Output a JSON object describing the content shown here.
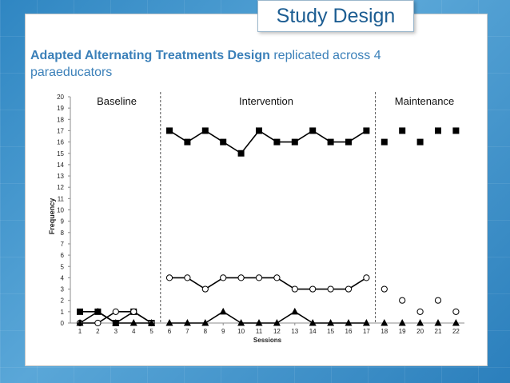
{
  "slide": {
    "title": "Study Design",
    "subtitle_bold": "Adapted Alternating Treatments Design",
    "subtitle_rest": " replicated across 4 paraeducators"
  },
  "colors": {
    "title_text": "#1c5d92",
    "subtitle_text": "#3b80b9",
    "background": "#3a8fca"
  },
  "chart_data": {
    "type": "line",
    "xlabel": "Sessions",
    "ylabel": "Frequency",
    "xlim": [
      1,
      22
    ],
    "ylim": [
      0,
      20
    ],
    "x_ticks": [
      1,
      2,
      3,
      4,
      5,
      6,
      7,
      8,
      9,
      10,
      11,
      12,
      13,
      14,
      15,
      16,
      17,
      18,
      19,
      20,
      21,
      22
    ],
    "y_ticks": [
      0,
      1,
      2,
      3,
      4,
      5,
      6,
      7,
      8,
      9,
      10,
      11,
      12,
      13,
      14,
      15,
      16,
      17,
      18,
      19,
      20
    ],
    "phases": [
      {
        "label": "Baseline",
        "start": 1,
        "end": 5
      },
      {
        "label": "Intervention",
        "start": 6,
        "end": 17
      },
      {
        "label": "Maintenance",
        "start": 18,
        "end": 22
      }
    ],
    "phase_change_lines": [
      5.5,
      17.5
    ],
    "series": [
      {
        "marker": "square",
        "points": [
          [
            1,
            1
          ],
          [
            2,
            1
          ],
          [
            3,
            0
          ],
          [
            4,
            1
          ],
          [
            5,
            0
          ],
          [
            6,
            17
          ],
          [
            7,
            16
          ],
          [
            8,
            17
          ],
          [
            9,
            16
          ],
          [
            10,
            15
          ],
          [
            11,
            17
          ],
          [
            12,
            16
          ],
          [
            13,
            16
          ],
          [
            14,
            17
          ],
          [
            15,
            16
          ],
          [
            16,
            16
          ],
          [
            17,
            17
          ],
          [
            18,
            16
          ],
          [
            19,
            17
          ],
          [
            20,
            16
          ],
          [
            21,
            17
          ],
          [
            22,
            17
          ]
        ],
        "connected_segments": [
          [
            1,
            5
          ],
          [
            6,
            17
          ]
        ]
      },
      {
        "marker": "circle",
        "points": [
          [
            1,
            0
          ],
          [
            2,
            0
          ],
          [
            3,
            1
          ],
          [
            4,
            1
          ],
          [
            5,
            0
          ],
          [
            6,
            4
          ],
          [
            7,
            4
          ],
          [
            8,
            3
          ],
          [
            9,
            4
          ],
          [
            10,
            4
          ],
          [
            11,
            4
          ],
          [
            12,
            4
          ],
          [
            13,
            3
          ],
          [
            14,
            3
          ],
          [
            15,
            3
          ],
          [
            16,
            3
          ],
          [
            17,
            4
          ],
          [
            18,
            3
          ],
          [
            19,
            2
          ],
          [
            20,
            1
          ],
          [
            21,
            2
          ],
          [
            22,
            1
          ]
        ],
        "connected_segments": [
          [
            1,
            5
          ],
          [
            6,
            17
          ]
        ]
      },
      {
        "marker": "triangle",
        "points": [
          [
            1,
            0
          ],
          [
            2,
            1
          ],
          [
            3,
            0
          ],
          [
            4,
            0
          ],
          [
            5,
            0
          ],
          [
            6,
            0
          ],
          [
            7,
            0
          ],
          [
            8,
            0
          ],
          [
            9,
            1
          ],
          [
            10,
            0
          ],
          [
            11,
            0
          ],
          [
            12,
            0
          ],
          [
            13,
            1
          ],
          [
            14,
            0
          ],
          [
            15,
            0
          ],
          [
            16,
            0
          ],
          [
            17,
            0
          ],
          [
            18,
            0
          ],
          [
            19,
            0
          ],
          [
            20,
            0
          ],
          [
            21,
            0
          ],
          [
            22,
            0
          ]
        ],
        "connected_segments": [
          [
            1,
            5
          ],
          [
            6,
            17
          ]
        ]
      }
    ]
  }
}
